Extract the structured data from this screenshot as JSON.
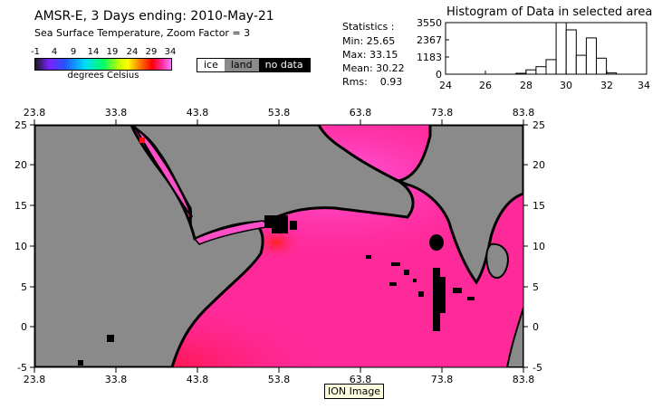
{
  "header": {
    "title": "AMSR-E, 3 Days ending: 2010-May-21",
    "subtitle": "Sea Surface Temperature,  Zoom Factor = 3"
  },
  "colorbar": {
    "ticks": [
      "-1",
      "4",
      "9",
      "14",
      "19",
      "24",
      "29",
      "34"
    ],
    "label": "degrees Celsius"
  },
  "legend": {
    "ice": "ice",
    "land": "land",
    "no_data": "no data"
  },
  "statistics": {
    "heading": "Statistics :",
    "min": "Min: 25.65",
    "max": "Max: 33.15",
    "mean": "Mean: 30.22",
    "rms": "Rms:    0.93"
  },
  "histogram": {
    "title": "Histogram of Data in selected area",
    "y_ticks": [
      "3550",
      "2367",
      "1183",
      "0"
    ],
    "x_ticks": [
      "24",
      "26",
      "28",
      "30",
      "32",
      "34"
    ]
  },
  "map": {
    "lon_ticks": [
      "23.8",
      "33.8",
      "43.8",
      "53.8",
      "63.8",
      "73.8",
      "83.8"
    ],
    "lat_ticks": [
      "25",
      "20",
      "15",
      "10",
      "5",
      "0",
      "-5"
    ]
  },
  "tooltip": {
    "text": "ION Image"
  },
  "colors": {
    "land": "#8a8a8a",
    "ocean": "#ff2a9a",
    "warm_ocean": "#ff1040",
    "coast": "#000000",
    "tooltip_bg": "#ffffe1"
  },
  "chart_data": {
    "type": "bar",
    "title": "Histogram of Data in selected area",
    "xlim": [
      24,
      34
    ],
    "ylim": [
      0,
      3550
    ],
    "bins": [
      {
        "x0": 27.5,
        "x1": 28.0,
        "value": 60
      },
      {
        "x0": 28.0,
        "x1": 28.5,
        "value": 300
      },
      {
        "x0": 28.5,
        "x1": 29.0,
        "value": 520
      },
      {
        "x0": 29.0,
        "x1": 29.5,
        "value": 1000
      },
      {
        "x0": 29.5,
        "x1": 30.0,
        "value": 3550
      },
      {
        "x0": 30.0,
        "x1": 30.5,
        "value": 3050
      },
      {
        "x0": 30.5,
        "x1": 31.0,
        "value": 1300
      },
      {
        "x0": 31.0,
        "x1": 31.5,
        "value": 2500
      },
      {
        "x0": 31.5,
        "x1": 32.0,
        "value": 1100
      },
      {
        "x0": 32.0,
        "x1": 32.5,
        "value": 90
      }
    ]
  }
}
